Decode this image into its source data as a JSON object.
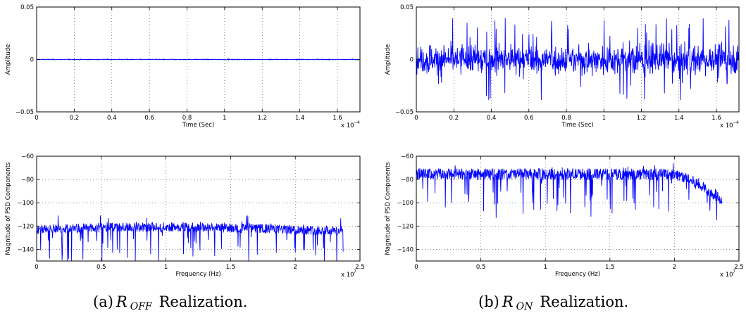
{
  "chart_data": [
    {
      "type": "line",
      "id": "a-time",
      "xlabel": "Time (Sec)",
      "ylabel": "Amplitude",
      "xlim": [
        0,
        0.000172
      ],
      "ylim": [
        -0.05,
        0.05
      ],
      "xticks": [
        "0",
        "0.2",
        "0.4",
        "0.6",
        "0.8",
        "1",
        "1.2",
        "1.4",
        "1.6"
      ],
      "yticks": [
        "0.05",
        "0",
        "−0.05"
      ],
      "x_multiplier": {
        "base": "x 10",
        "exp": "−4"
      },
      "grid": true,
      "color": "#0000ff",
      "series": [
        {
          "values_summary": {
            "mean": 0,
            "amplitude": 0.0005,
            "points": 1100
          }
        }
      ]
    },
    {
      "type": "line",
      "id": "b-time",
      "xlabel": "Time (Sec)",
      "ylabel": "Amplitude",
      "xlim": [
        0,
        0.000172
      ],
      "ylim": [
        -0.05,
        0.05
      ],
      "xticks": [
        "0",
        "0.2",
        "0.4",
        "0.6",
        "0.8",
        "1",
        "1.2",
        "1.4",
        "1.6"
      ],
      "yticks": [
        "0.05",
        "0",
        "−0.05"
      ],
      "x_multiplier": {
        "base": "x 10",
        "exp": "−4"
      },
      "grid": true,
      "color": "#0000ff",
      "series": [
        {
          "values_summary": {
            "mean": 0,
            "min": -0.04,
            "max": 0.04,
            "typical_range": 0.018,
            "points": 1100
          }
        }
      ]
    },
    {
      "type": "line",
      "id": "a-psd",
      "xlabel": "Frequency (Hz)",
      "ylabel": "Magnitude of PSD Components",
      "xlim": [
        0,
        25000000
      ],
      "ylim": [
        -150,
        -60
      ],
      "xticks": [
        "0",
        "0.5",
        "1",
        "1.5",
        "2",
        "2.5"
      ],
      "yticks": [
        "−60",
        "−80",
        "−100",
        "−120",
        "−140"
      ],
      "x_multiplier": {
        "base": "x 10",
        "exp": "7"
      },
      "grid": true,
      "color": "#0000ff",
      "series": [
        {
          "x_end": 23700000,
          "values_summary": {
            "baseline": -122,
            "min": -150,
            "max": -111,
            "points": 1000
          }
        }
      ]
    },
    {
      "type": "line",
      "id": "b-psd",
      "xlabel": "Frequency (Hz)",
      "ylabel": "Magnitude of PSD Components",
      "xlim": [
        0,
        25000000
      ],
      "ylim": [
        -150,
        -60
      ],
      "xticks": [
        "0",
        "0.5",
        "1",
        "1.5",
        "2",
        "2.5"
      ],
      "yticks": [
        "−60",
        "−80",
        "−100",
        "−120",
        "−140"
      ],
      "x_multiplier": {
        "base": "x 10",
        "exp": "7"
      },
      "grid": true,
      "color": "#0000ff",
      "series": [
        {
          "x_end": 23700000,
          "values_summary": {
            "baseline": -75,
            "min": -115,
            "max": -65,
            "rolloff_start": 20000000,
            "end_level": -97,
            "points": 1000
          }
        }
      ]
    }
  ],
  "captions": {
    "a": {
      "prefix": "(a)",
      "symbol": "R",
      "subscript": "OFF",
      "suffix": "Realization."
    },
    "b": {
      "prefix": "(b)",
      "symbol": "R",
      "subscript": "ON",
      "suffix": "Realization."
    }
  }
}
